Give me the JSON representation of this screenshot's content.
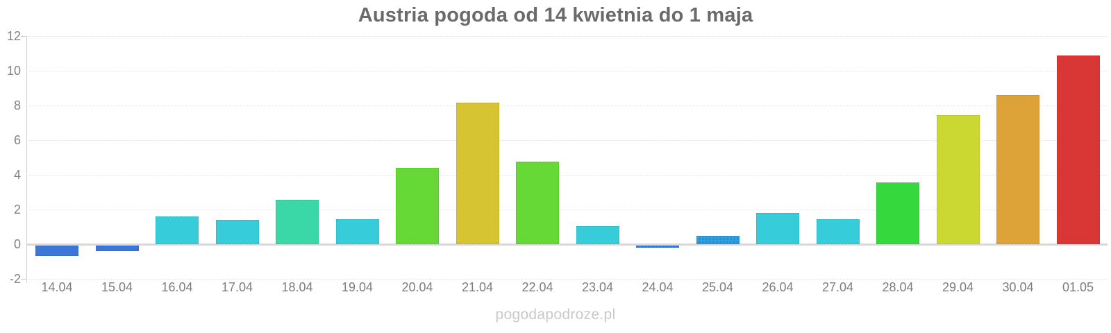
{
  "title": "Austria pogoda od 14 kwietnia do 1 maja",
  "watermark": "pogodapodroze.pl",
  "colors": {
    "title_text": "#6a6a6a",
    "axis_line": "#cfcfcf",
    "zero_line": "#d8d8d8",
    "gridline": "#e4e4e4",
    "tick_text": "#7d7d7d",
    "watermark_text": "#c9c9c9",
    "cold_blue": "#3b76d9",
    "cool_cyan": "#37ccd9",
    "teal": "#3bd8a7",
    "mild_green": "#66d936",
    "green": "#35d93d",
    "yellow": "#d6c433",
    "yellow_green": "#cbd832",
    "orange": "#dda339",
    "red": "#d93636",
    "dotted_bar_base": "#2e9fe0",
    "dotted_bar_dot": "#2a7ec5"
  },
  "chart_data": {
    "type": "bar",
    "title": "Austria pogoda od 14 kwietnia do 1 maja",
    "xlabel": "",
    "ylabel": "",
    "ylim": [
      -2,
      12
    ],
    "yticks": [
      12,
      10,
      8,
      6,
      4,
      2,
      0,
      -2
    ],
    "grid": "horizontal-dotted",
    "legend_position": "none",
    "categories": [
      "14.04",
      "15.04",
      "16.04",
      "17.04",
      "18.04",
      "19.04",
      "20.04",
      "21.04",
      "22.04",
      "23.04",
      "24.04",
      "25.04",
      "26.04",
      "27.04",
      "28.04",
      "29.04",
      "30.04",
      "01.05"
    ],
    "values": [
      -0.6,
      -0.3,
      1.6,
      1.4,
      2.55,
      1.45,
      4.4,
      8.15,
      4.75,
      1.05,
      -0.1,
      0.5,
      1.8,
      1.45,
      3.55,
      7.45,
      8.6,
      10.9
    ],
    "bar_colors": [
      "#3b76d9",
      "#3b76d9",
      "#37ccd9",
      "#37ccd9",
      "#3bd8a7",
      "#37ccd9",
      "#66d936",
      "#d6c433",
      "#66d936",
      "#37ccd9",
      "#3b76d9",
      "#2e9fe0",
      "#37ccd9",
      "#37ccd9",
      "#35d93d",
      "#cbd832",
      "#dda339",
      "#d93636"
    ],
    "bar_patterns": [
      null,
      null,
      null,
      null,
      null,
      null,
      null,
      null,
      null,
      null,
      null,
      "dots",
      null,
      null,
      null,
      null,
      null,
      null
    ]
  }
}
